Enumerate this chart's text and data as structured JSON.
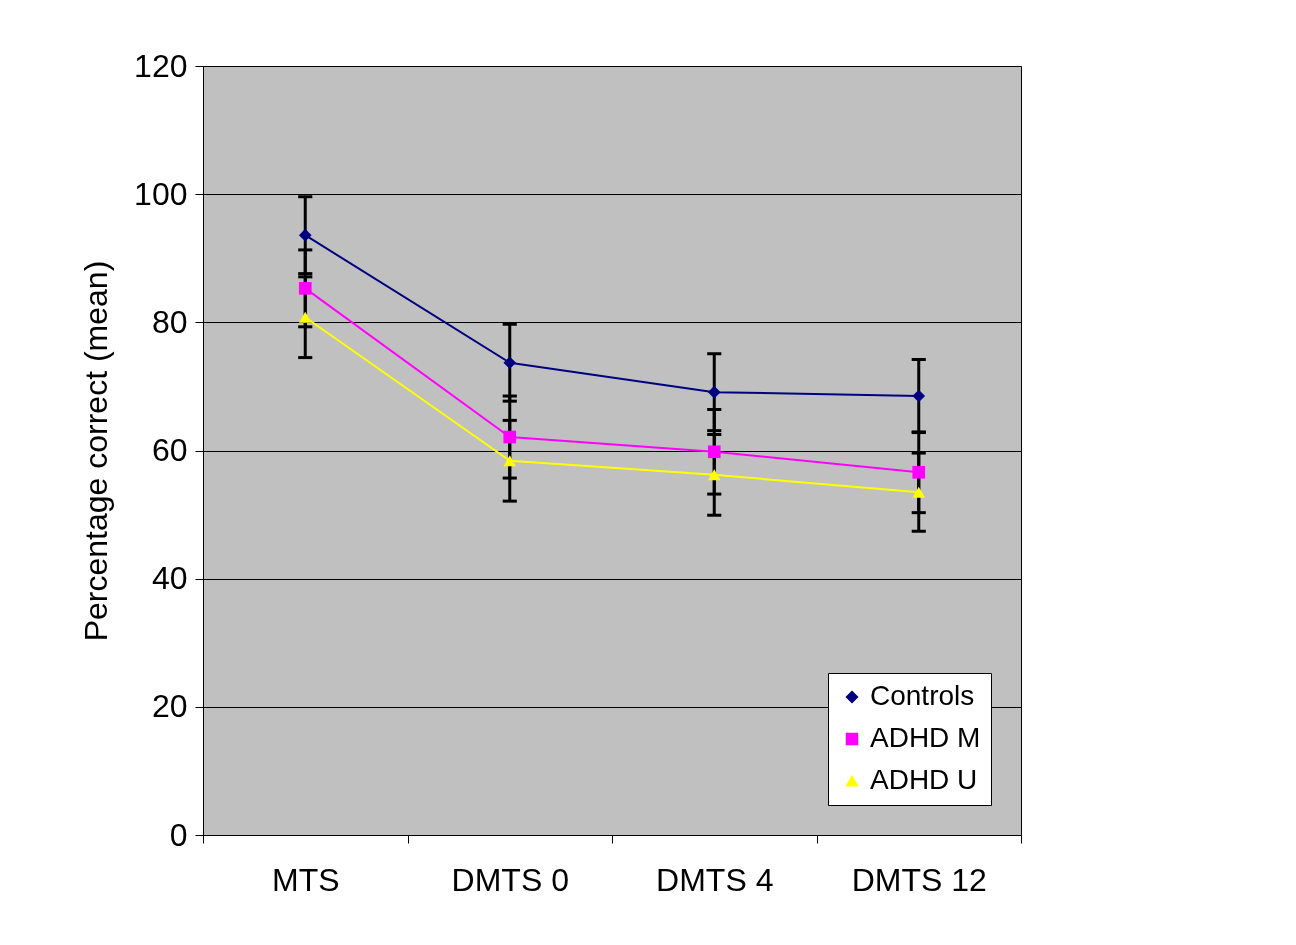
{
  "chart_data": {
    "type": "line",
    "ylabel": "Percentage correct (mean)",
    "categories": [
      "MTS",
      "DMTS 0",
      "DMTS 4",
      "DMTS 12"
    ],
    "series": [
      {
        "name": "Controls",
        "color": "#000080",
        "marker": "diamond",
        "values": [
          93.6,
          73.7,
          69.1,
          68.5
        ],
        "errors": [
          6,
          6,
          6,
          5.7
        ]
      },
      {
        "name": "ADHD M",
        "color": "#ff00ff",
        "marker": "square",
        "values": [
          85.3,
          62.1,
          59.8,
          56.6
        ],
        "errors": [
          6,
          6.4,
          6.6,
          6.3
        ]
      },
      {
        "name": "ADHD U",
        "color": "#ffff00",
        "marker": "triangle",
        "values": [
          80.8,
          58.4,
          56.2,
          53.5
        ],
        "errors": [
          6.3,
          6.3,
          6.3,
          6.1
        ]
      }
    ],
    "ylim": [
      0,
      120
    ],
    "yticks": [
      0,
      20,
      40,
      60,
      80,
      100,
      120
    ],
    "grid": "y",
    "legend": "bottom right",
    "line_style": "solid"
  }
}
